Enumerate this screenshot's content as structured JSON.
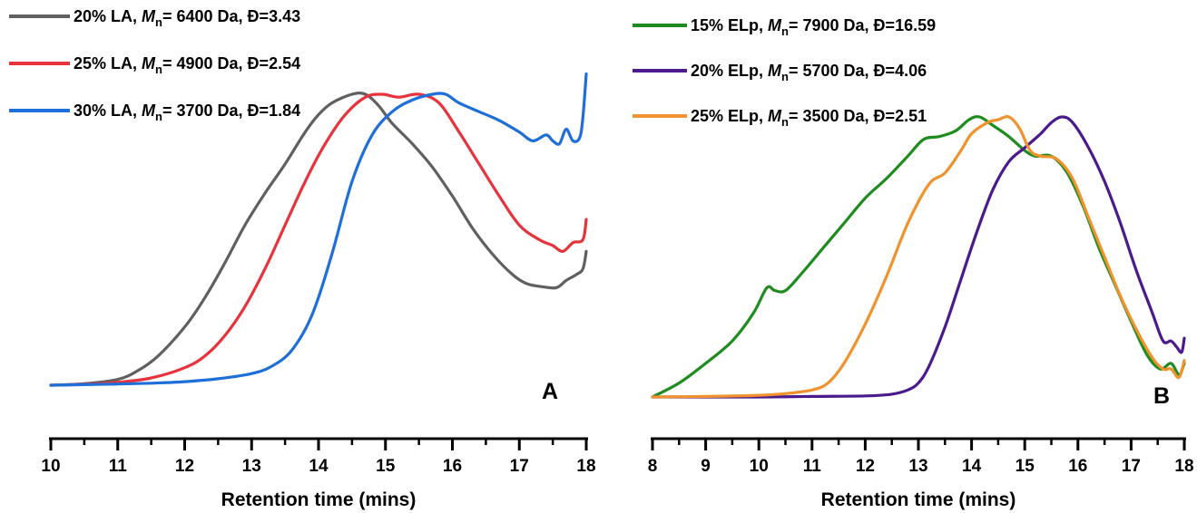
{
  "chart_data": [
    {
      "panel": "A",
      "type": "line",
      "xlabel": "Retention time (mins)",
      "ylabel": "",
      "xlim": [
        10,
        18
      ],
      "xticks": [
        "10",
        "11",
        "12",
        "13",
        "14",
        "15",
        "16",
        "17",
        "18"
      ],
      "legend_position": "top-left",
      "grid": false,
      "series": [
        {
          "name": "20% LA, Mn= 6400 Da, Đ=3.43",
          "sample": "20% LA",
          "mn": "6400 Da",
          "dispersity": "Đ=3.43",
          "color": "#606060",
          "x": [
            10.0,
            10.5,
            11.0,
            11.3,
            11.6,
            12.0,
            12.3,
            12.6,
            12.9,
            13.2,
            13.5,
            13.8,
            14.0,
            14.2,
            14.5,
            14.7,
            14.9,
            15.1,
            15.4,
            15.7,
            16.0,
            16.3,
            16.6,
            16.9,
            17.1,
            17.3,
            17.55,
            17.7,
            17.85,
            17.95,
            18.0
          ],
          "y": [
            0.0,
            0.005,
            0.02,
            0.05,
            0.1,
            0.2,
            0.3,
            0.42,
            0.55,
            0.66,
            0.76,
            0.87,
            0.93,
            0.97,
            1.0,
            1.0,
            0.96,
            0.9,
            0.83,
            0.75,
            0.65,
            0.54,
            0.45,
            0.38,
            0.35,
            0.34,
            0.335,
            0.36,
            0.38,
            0.4,
            0.46
          ]
        },
        {
          "name": "25% LA, Mn= 4900 Da, Đ=2.54",
          "sample": "25% LA",
          "mn": "4900 Da",
          "dispersity": "Đ=2.54",
          "color": "#e8323c",
          "x": [
            10.0,
            10.5,
            11.0,
            11.5,
            12.0,
            12.3,
            12.6,
            12.9,
            13.2,
            13.5,
            13.8,
            14.1,
            14.4,
            14.7,
            14.95,
            15.2,
            15.5,
            15.8,
            16.1,
            16.4,
            16.7,
            17.0,
            17.3,
            17.5,
            17.65,
            17.8,
            17.95,
            18.0
          ],
          "y": [
            0.0,
            0.003,
            0.01,
            0.025,
            0.06,
            0.1,
            0.17,
            0.27,
            0.4,
            0.55,
            0.7,
            0.83,
            0.93,
            0.99,
            1.0,
            0.99,
            1.0,
            0.97,
            0.87,
            0.76,
            0.65,
            0.55,
            0.5,
            0.48,
            0.46,
            0.49,
            0.5,
            0.57
          ]
        },
        {
          "name": "30% LA, Mn= 3700 Da, Đ=1.84",
          "sample": "30% LA",
          "mn": "3700 Da",
          "dispersity": "Đ=1.84",
          "color": "#1e6fd9",
          "x": [
            10.0,
            10.5,
            11.0,
            11.5,
            12.0,
            12.5,
            13.0,
            13.3,
            13.6,
            13.9,
            14.2,
            14.5,
            14.8,
            15.1,
            15.4,
            15.7,
            15.9,
            16.1,
            16.4,
            16.7,
            17.0,
            17.2,
            17.4,
            17.5,
            17.6,
            17.7,
            17.8,
            17.9,
            17.95,
            18.0
          ],
          "y": [
            0.0,
            0.002,
            0.004,
            0.007,
            0.012,
            0.022,
            0.04,
            0.065,
            0.12,
            0.24,
            0.45,
            0.7,
            0.86,
            0.94,
            0.98,
            1.0,
            1.0,
            0.97,
            0.94,
            0.91,
            0.87,
            0.84,
            0.86,
            0.84,
            0.83,
            0.88,
            0.84,
            0.85,
            0.92,
            1.07
          ]
        }
      ]
    },
    {
      "panel": "B",
      "type": "line",
      "xlabel": "Retention time (mins)",
      "ylabel": "",
      "xlim": [
        8,
        18
      ],
      "xticks": [
        "8",
        "9",
        "10",
        "11",
        "12",
        "13",
        "14",
        "15",
        "16",
        "17",
        "18"
      ],
      "legend_position": "top-left",
      "grid": false,
      "series": [
        {
          "name": "15% ELp, Mn= 7900 Da, Đ=16.59",
          "sample": "15% ELp",
          "mn": "7900 Da",
          "dispersity": "Đ=16.59",
          "color": "#1e8c1e",
          "x": [
            8.0,
            8.5,
            9.0,
            9.5,
            9.9,
            10.15,
            10.3,
            10.5,
            10.8,
            11.2,
            11.6,
            12.0,
            12.4,
            12.8,
            13.1,
            13.4,
            13.7,
            13.95,
            14.15,
            14.4,
            14.7,
            15.0,
            15.2,
            15.5,
            15.8,
            16.1,
            16.4,
            16.7,
            17.0,
            17.3,
            17.55,
            17.75,
            17.9,
            18.0
          ],
          "y": [
            0.0,
            0.05,
            0.12,
            0.2,
            0.3,
            0.39,
            0.38,
            0.38,
            0.44,
            0.53,
            0.62,
            0.71,
            0.78,
            0.86,
            0.92,
            0.93,
            0.95,
            0.99,
            1.0,
            0.97,
            0.93,
            0.88,
            0.86,
            0.86,
            0.8,
            0.68,
            0.53,
            0.4,
            0.27,
            0.15,
            0.1,
            0.12,
            0.08,
            0.12
          ]
        },
        {
          "name": "20% ELp, Mn= 5700 Da, Đ=4.06",
          "sample": "20% ELp",
          "mn": "5700 Da",
          "dispersity": "Đ=4.06",
          "color": "#4b1a8c",
          "x": [
            8.0,
            9.0,
            10.0,
            11.0,
            12.0,
            12.5,
            12.8,
            13.0,
            13.2,
            13.5,
            13.8,
            14.1,
            14.4,
            14.7,
            15.0,
            15.3,
            15.5,
            15.7,
            15.9,
            16.2,
            16.5,
            16.8,
            17.1,
            17.4,
            17.6,
            17.75,
            17.85,
            17.95,
            18.0
          ],
          "y": [
            0.0,
            0.0,
            0.0,
            0.002,
            0.004,
            0.01,
            0.025,
            0.05,
            0.11,
            0.25,
            0.42,
            0.59,
            0.74,
            0.84,
            0.89,
            0.94,
            0.98,
            1.0,
            0.98,
            0.89,
            0.77,
            0.62,
            0.45,
            0.3,
            0.2,
            0.2,
            0.18,
            0.16,
            0.21
          ]
        },
        {
          "name": "25% ELp, Mn= 3500 Da, Đ=2.51",
          "sample": "25% ELp",
          "mn": "3500 Da",
          "dispersity": "Đ=2.51",
          "color": "#f0922d",
          "x": [
            8.0,
            9.0,
            10.0,
            10.5,
            11.0,
            11.3,
            11.6,
            12.0,
            12.4,
            12.8,
            13.2,
            13.5,
            13.8,
            14.0,
            14.3,
            14.5,
            14.7,
            14.9,
            15.1,
            15.3,
            15.6,
            15.9,
            16.2,
            16.5,
            16.8,
            17.1,
            17.4,
            17.6,
            17.75,
            17.9,
            18.0
          ],
          "y": [
            0.0,
            0.002,
            0.006,
            0.012,
            0.025,
            0.05,
            0.12,
            0.26,
            0.43,
            0.62,
            0.76,
            0.8,
            0.88,
            0.94,
            0.98,
            0.99,
            1.0,
            0.96,
            0.88,
            0.86,
            0.85,
            0.78,
            0.64,
            0.5,
            0.36,
            0.24,
            0.14,
            0.1,
            0.1,
            0.07,
            0.13
          ]
        }
      ]
    }
  ]
}
